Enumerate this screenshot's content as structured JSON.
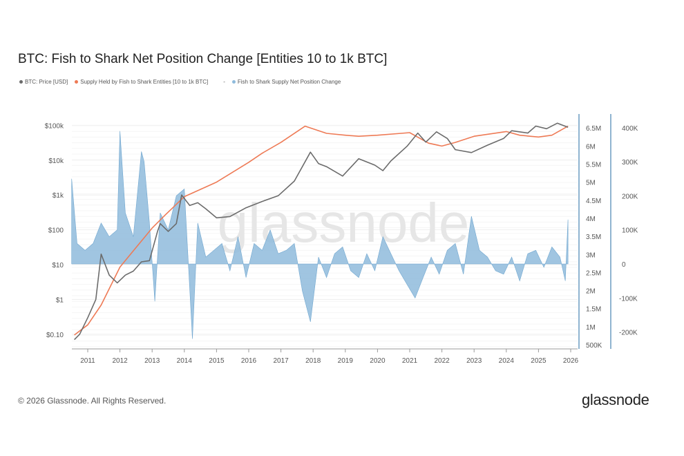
{
  "chart_data": {
    "type": "line",
    "title": "BTC: Fish to Shark Net Position Change [Entities 10 to 1k BTC]",
    "legend_position": "top-left",
    "grid": true,
    "watermark": "glassnode",
    "x_ticks": [
      "2011",
      "2012",
      "2013",
      "2014",
      "2015",
      "2016",
      "2017",
      "2018",
      "2019",
      "2020",
      "2021",
      "2022",
      "2023",
      "2024",
      "2025",
      "2026"
    ],
    "axes": {
      "price": {
        "scale": "log",
        "range": [
          0.05,
          150000
        ],
        "ticks": [
          [
            "$0.10",
            0.1
          ],
          [
            "$1",
            1
          ],
          [
            "$10",
            10
          ],
          [
            "$100",
            100
          ],
          [
            "$1k",
            1000
          ],
          [
            "$10k",
            10000
          ],
          [
            "$100k",
            100000
          ]
        ]
      },
      "supply": {
        "scale": "linear",
        "range": [
          500000,
          6500000
        ],
        "ticks": [
          [
            "500K",
            500000
          ],
          [
            "1M",
            1000000
          ],
          [
            "1.5M",
            1500000
          ],
          [
            "2M",
            2000000
          ],
          [
            "2.5M",
            2500000
          ],
          [
            "3M",
            3000000
          ],
          [
            "3.5M",
            3500000
          ],
          [
            "4M",
            4000000
          ],
          [
            "4.5M",
            4500000
          ],
          [
            "5M",
            5000000
          ],
          [
            "5.5M",
            5500000
          ],
          [
            "6M",
            6000000
          ],
          [
            "6.5M",
            6500000
          ]
        ]
      },
      "change": {
        "scale": "linear",
        "range": [
          -240000,
          420000
        ],
        "ticks": [
          [
            "-200K",
            -200000
          ],
          [
            "-100K",
            -100000
          ],
          [
            "0",
            0
          ],
          [
            "100K",
            100000
          ],
          [
            "200K",
            200000
          ],
          [
            "300K",
            300000
          ],
          [
            "400K",
            400000
          ]
        ]
      }
    },
    "series": [
      {
        "name": "BTC: Price [USD]",
        "axis": "price",
        "color": "#6b6b6b",
        "kind": "line",
        "points": [
          [
            "2010-08",
            0.07
          ],
          [
            "2010-10",
            0.1
          ],
          [
            "2011-01",
            0.3
          ],
          [
            "2011-04",
            1
          ],
          [
            "2011-06",
            20
          ],
          [
            "2011-09",
            5
          ],
          [
            "2011-12",
            3
          ],
          [
            "2012-03",
            5
          ],
          [
            "2012-06",
            6.5
          ],
          [
            "2012-09",
            12
          ],
          [
            "2012-12",
            13
          ],
          [
            "2013-03",
            90
          ],
          [
            "2013-04",
            150
          ],
          [
            "2013-07",
            90
          ],
          [
            "2013-10",
            150
          ],
          [
            "2013-12",
            1000
          ],
          [
            "2014-03",
            500
          ],
          [
            "2014-06",
            600
          ],
          [
            "2014-09",
            400
          ],
          [
            "2015-01",
            220
          ],
          [
            "2015-06",
            240
          ],
          [
            "2015-12",
            430
          ],
          [
            "2016-06",
            650
          ],
          [
            "2016-12",
            950
          ],
          [
            "2017-06",
            2500
          ],
          [
            "2017-12",
            17000
          ],
          [
            "2018-03",
            8000
          ],
          [
            "2018-06",
            6500
          ],
          [
            "2018-12",
            3500
          ],
          [
            "2019-06",
            11000
          ],
          [
            "2019-12",
            7200
          ],
          [
            "2020-03",
            5000
          ],
          [
            "2020-06",
            9500
          ],
          [
            "2020-12",
            25000
          ],
          [
            "2021-04",
            60000
          ],
          [
            "2021-07",
            33000
          ],
          [
            "2021-11",
            65000
          ],
          [
            "2022-03",
            42000
          ],
          [
            "2022-06",
            20000
          ],
          [
            "2022-12",
            16500
          ],
          [
            "2023-06",
            27000
          ],
          [
            "2023-12",
            42000
          ],
          [
            "2024-03",
            70000
          ],
          [
            "2024-09",
            60000
          ],
          [
            "2024-12",
            95000
          ],
          [
            "2025-04",
            80000
          ],
          [
            "2025-08",
            115000
          ],
          [
            "2025-12",
            88000
          ]
        ]
      },
      {
        "name": "Supply Held by Fish to Shark Entities [10 to 1k BTC]",
        "axis": "supply",
        "color": "#ee7a55",
        "kind": "line",
        "points": [
          [
            "2010-08",
            770000
          ],
          [
            "2011-01",
            1050000
          ],
          [
            "2011-06",
            1600000
          ],
          [
            "2012-01",
            2650000
          ],
          [
            "2012-06",
            3100000
          ],
          [
            "2013-01",
            3730000
          ],
          [
            "2013-06",
            4100000
          ],
          [
            "2014-01",
            4600000
          ],
          [
            "2015-01",
            5000000
          ],
          [
            "2016-01",
            5550000
          ],
          [
            "2016-06",
            5800000
          ],
          [
            "2017-01",
            6100000
          ],
          [
            "2017-10",
            6550000
          ],
          [
            "2018-06",
            6350000
          ],
          [
            "2019-01",
            6300000
          ],
          [
            "2019-06",
            6270000
          ],
          [
            "2020-01",
            6300000
          ],
          [
            "2021-01",
            6370000
          ],
          [
            "2021-08",
            6080000
          ],
          [
            "2022-01",
            6000000
          ],
          [
            "2022-06",
            6100000
          ],
          [
            "2023-01",
            6270000
          ],
          [
            "2024-01",
            6400000
          ],
          [
            "2024-06",
            6300000
          ],
          [
            "2025-01",
            6250000
          ],
          [
            "2025-06",
            6300000
          ],
          [
            "2025-12",
            6550000
          ]
        ]
      },
      {
        "name": "Fish to Shark Supply Net Position Change",
        "axis": "change",
        "color": "#8fbbdc",
        "kind": "area",
        "points": [
          [
            "2010-07",
            250000
          ],
          [
            "2010-09",
            60000
          ],
          [
            "2010-12",
            40000
          ],
          [
            "2011-03",
            60000
          ],
          [
            "2011-06",
            120000
          ],
          [
            "2011-09",
            80000
          ],
          [
            "2011-12",
            100000
          ],
          [
            "2012-01",
            390000
          ],
          [
            "2012-03",
            150000
          ],
          [
            "2012-06",
            80000
          ],
          [
            "2012-09",
            330000
          ],
          [
            "2012-10",
            300000
          ],
          [
            "2012-12",
            120000
          ],
          [
            "2013-02",
            -110000
          ],
          [
            "2013-04",
            150000
          ],
          [
            "2013-07",
            100000
          ],
          [
            "2013-10",
            200000
          ],
          [
            "2014-01",
            220000
          ],
          [
            "2014-04",
            -220000
          ],
          [
            "2014-06",
            120000
          ],
          [
            "2014-09",
            20000
          ],
          [
            "2014-12",
            40000
          ],
          [
            "2015-03",
            60000
          ],
          [
            "2015-06",
            -20000
          ],
          [
            "2015-09",
            80000
          ],
          [
            "2015-12",
            -40000
          ],
          [
            "2016-03",
            60000
          ],
          [
            "2016-06",
            40000
          ],
          [
            "2016-09",
            100000
          ],
          [
            "2016-12",
            30000
          ],
          [
            "2017-03",
            40000
          ],
          [
            "2017-06",
            60000
          ],
          [
            "2017-09",
            -80000
          ],
          [
            "2017-12",
            -170000
          ],
          [
            "2018-03",
            20000
          ],
          [
            "2018-06",
            -40000
          ],
          [
            "2018-09",
            30000
          ],
          [
            "2018-12",
            50000
          ],
          [
            "2019-03",
            -20000
          ],
          [
            "2019-06",
            -40000
          ],
          [
            "2019-09",
            30000
          ],
          [
            "2019-12",
            -20000
          ],
          [
            "2020-03",
            80000
          ],
          [
            "2020-06",
            30000
          ],
          [
            "2020-09",
            -20000
          ],
          [
            "2020-12",
            -60000
          ],
          [
            "2021-03",
            -100000
          ],
          [
            "2021-06",
            -40000
          ],
          [
            "2021-09",
            20000
          ],
          [
            "2021-12",
            -30000
          ],
          [
            "2022-03",
            40000
          ],
          [
            "2022-06",
            60000
          ],
          [
            "2022-09",
            -30000
          ],
          [
            "2022-12",
            140000
          ],
          [
            "2023-03",
            40000
          ],
          [
            "2023-06",
            20000
          ],
          [
            "2023-09",
            -20000
          ],
          [
            "2023-12",
            -30000
          ],
          [
            "2024-03",
            20000
          ],
          [
            "2024-06",
            -50000
          ],
          [
            "2024-09",
            30000
          ],
          [
            "2024-12",
            40000
          ],
          [
            "2025-03",
            -10000
          ],
          [
            "2025-06",
            50000
          ],
          [
            "2025-09",
            20000
          ],
          [
            "2025-11",
            -50000
          ],
          [
            "2025-12",
            130000
          ]
        ]
      }
    ]
  },
  "legend": {
    "price": "BTC: Price [USD]",
    "supply": "Supply Held by Fish to Shark Entities [10 to 1k BTC]",
    "separator": "-",
    "change": "Fish to Shark Supply Net Position Change"
  },
  "footer": {
    "copyright": "© 2026 Glassnode. All Rights Reserved.",
    "brand": "glassnode"
  }
}
